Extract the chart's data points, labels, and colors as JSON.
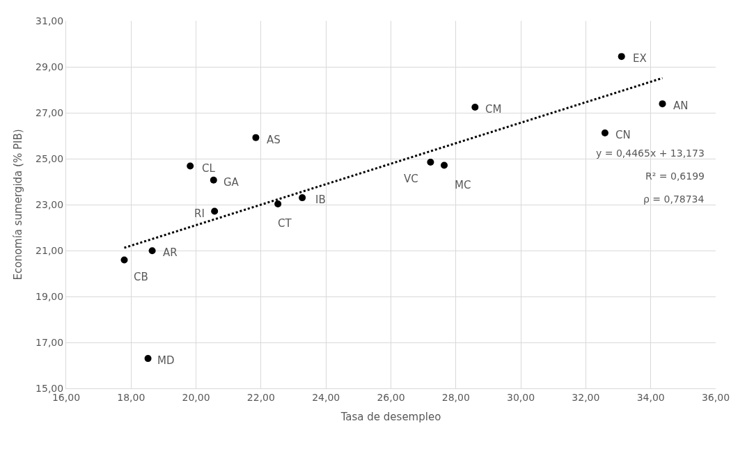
{
  "chart_data": {
    "type": "scatter",
    "xlabel": "Tasa de desempleo",
    "ylabel": "Economía sumergida (% PIB)",
    "series": [
      {
        "color": "#000000",
        "marker": "circle",
        "x": [
          21.84,
          19.82,
          20.54,
          20.57,
          22.52,
          23.27,
          33.1,
          28.59,
          34.36,
          32.59,
          27.22,
          27.64,
          17.79,
          18.65,
          18.52
        ],
        "values": [
          25.92,
          24.68,
          24.07,
          22.71,
          23.03,
          23.3,
          29.45,
          27.24,
          27.39,
          26.12,
          24.85,
          24.71,
          20.59,
          20.99,
          16.3
        ]
      },
      {
        "type": "line",
        "color": "#000000",
        "line_style": "dotted",
        "x": [
          17.79,
          34.36
        ],
        "values": [
          21.12,
          28.51
        ]
      }
    ],
    "annotations": [
      {
        "text": "AS",
        "x": 21.84,
        "y": 25.92
      },
      {
        "text": "CL",
        "x": 19.82,
        "y": 24.68
      },
      {
        "text": "GA",
        "x": 20.54,
        "y": 24.07
      },
      {
        "text": "RI",
        "x": 20.57,
        "y": 22.71
      },
      {
        "text": "CT",
        "x": 22.52,
        "y": 23.03
      },
      {
        "text": "IB",
        "x": 23.27,
        "y": 23.3
      },
      {
        "text": "EX",
        "x": 33.1,
        "y": 29.45
      },
      {
        "text": "CM",
        "x": 28.59,
        "y": 27.24
      },
      {
        "text": "AN",
        "x": 34.36,
        "y": 27.39
      },
      {
        "text": "CN",
        "x": 32.59,
        "y": 26.12
      },
      {
        "text": "VC",
        "x": 27.22,
        "y": 24.85
      },
      {
        "text": "MC",
        "x": 27.64,
        "y": 24.71
      },
      {
        "text": "CB",
        "x": 17.79,
        "y": 20.59
      },
      {
        "text": "AR",
        "x": 18.65,
        "y": 20.99
      },
      {
        "text": "MD",
        "x": 18.52,
        "y": 16.3
      },
      "y = 0,4465x + 13,173",
      "R² = 0,6199",
      "ρ = 0,78734"
    ],
    "xlim": [
      16,
      36
    ],
    "ylim": [
      15,
      31
    ],
    "xticks": [
      {
        "value": 16,
        "label": "16,00"
      },
      {
        "value": 18,
        "label": "18,00"
      },
      {
        "value": 20,
        "label": "20,00"
      },
      {
        "value": 22,
        "label": "22,00"
      },
      {
        "value": 24,
        "label": "24,00"
      },
      {
        "value": 26,
        "label": "26,00"
      },
      {
        "value": 28,
        "label": "28,00"
      },
      {
        "value": 30,
        "label": "30,00"
      },
      {
        "value": 32,
        "label": "32,00"
      },
      {
        "value": 34,
        "label": "34,00"
      },
      {
        "value": 36,
        "label": "36,00"
      }
    ],
    "yticks": [
      {
        "value": 15,
        "label": "15,00"
      },
      {
        "value": 17,
        "label": "17,00"
      },
      {
        "value": 19,
        "label": "19,00"
      },
      {
        "value": 21,
        "label": "21,00"
      },
      {
        "value": 23,
        "label": "23,00"
      },
      {
        "value": 25,
        "label": "25,00"
      },
      {
        "value": 27,
        "label": "27,00"
      },
      {
        "value": 29,
        "label": "29,00"
      },
      {
        "value": 31,
        "label": "31,00"
      }
    ],
    "grid": true
  }
}
